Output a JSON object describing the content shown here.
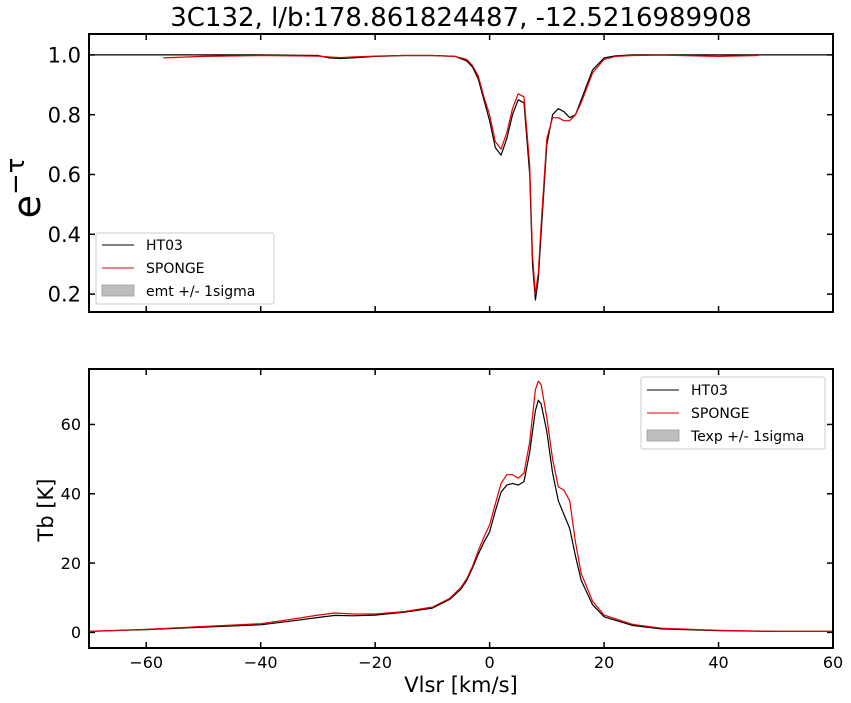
{
  "title": "3C132, l/b:178.861824487, -12.5216989908",
  "colors": {
    "ht03": "#000000",
    "sponge": "#e00000",
    "band": "#bdbdbd"
  },
  "chart_data": [
    {
      "type": "line",
      "ylabel_base": "e",
      "ylabel_exp": "−τ",
      "xlim": [
        -70,
        60
      ],
      "ylim": [
        0.14,
        1.07
      ],
      "yticks": [
        0.2,
        0.4,
        0.6,
        0.8,
        1.0
      ],
      "ytick_labels": [
        "0.2",
        "0.4",
        "0.6",
        "0.8",
        "1.0"
      ],
      "legend_position": "lower-left",
      "legend": [
        "HT03",
        "SPONGE",
        "emt +/- 1sigma"
      ],
      "series": [
        {
          "name": "HT03",
          "x": [
            -70,
            -60,
            -50,
            -40,
            -30,
            -28,
            -26,
            -24,
            -20,
            -15,
            -10,
            -6,
            -4,
            -3,
            -2,
            -1,
            0,
            1,
            2,
            3,
            4,
            5,
            6,
            7,
            7.5,
            8,
            8.5,
            9,
            10,
            11,
            12,
            13,
            14,
            15,
            16,
            17,
            18,
            20,
            22,
            25,
            30,
            40,
            50,
            60
          ],
          "y": [
            1.0,
            1.0,
            1.0,
            1.0,
            0.998,
            0.99,
            0.988,
            0.99,
            0.995,
            0.998,
            0.998,
            0.995,
            0.98,
            0.96,
            0.92,
            0.85,
            0.78,
            0.69,
            0.665,
            0.72,
            0.8,
            0.85,
            0.84,
            0.6,
            0.3,
            0.18,
            0.25,
            0.4,
            0.7,
            0.8,
            0.82,
            0.81,
            0.79,
            0.8,
            0.85,
            0.9,
            0.95,
            0.99,
            0.997,
            1.0,
            1.0,
            1.0,
            1.0,
            1.0
          ]
        },
        {
          "name": "SPONGE",
          "x": [
            -57,
            -50,
            -40,
            -30,
            -28,
            -26,
            -24,
            -20,
            -15,
            -10,
            -6,
            -4,
            -3,
            -2,
            -1,
            0,
            1,
            2,
            3,
            4,
            5,
            6,
            7,
            7.5,
            8,
            8.5,
            9,
            10,
            11,
            12,
            13,
            14,
            15,
            16,
            17,
            18,
            20,
            22,
            25,
            30,
            40,
            47
          ],
          "y": [
            0.99,
            0.995,
            0.998,
            0.996,
            0.993,
            0.991,
            0.993,
            0.996,
            0.998,
            0.998,
            0.995,
            0.985,
            0.965,
            0.93,
            0.86,
            0.8,
            0.71,
            0.685,
            0.74,
            0.82,
            0.87,
            0.86,
            0.63,
            0.33,
            0.2,
            0.27,
            0.43,
            0.72,
            0.79,
            0.79,
            0.78,
            0.78,
            0.8,
            0.84,
            0.89,
            0.94,
            0.985,
            0.995,
            0.998,
            0.999,
            0.995,
            0.998
          ]
        }
      ]
    },
    {
      "type": "line",
      "xlabel": "Vlsr [km/s]",
      "ylabel": "Tb [K]",
      "xlim": [
        -70,
        60
      ],
      "ylim": [
        -4.5,
        76
      ],
      "yticks": [
        0,
        20,
        40,
        60
      ],
      "ytick_labels": [
        "0",
        "20",
        "40",
        "60"
      ],
      "xticks": [
        -60,
        -40,
        -20,
        0,
        20,
        40,
        60
      ],
      "xtick_labels": [
        "−60",
        "−40",
        "−20",
        "0",
        "20",
        "40",
        "60"
      ],
      "legend_position": "upper-right",
      "legend": [
        "HT03",
        "SPONGE",
        "Texp +/- 1sigma"
      ],
      "series": [
        {
          "name": "HT03",
          "x": [
            -70,
            -60,
            -50,
            -40,
            -35,
            -30,
            -27,
            -24,
            -20,
            -15,
            -10,
            -7,
            -5,
            -4,
            -3,
            -2,
            -1,
            0,
            1,
            2,
            3,
            4,
            5,
            6,
            7,
            8,
            8.5,
            9,
            10,
            11,
            12,
            13,
            14,
            15,
            16,
            18,
            20,
            25,
            30,
            40,
            50,
            60
          ],
          "y": [
            0.3,
            0.8,
            1.5,
            2.2,
            3.2,
            4.3,
            4.9,
            4.8,
            5.0,
            5.8,
            7.0,
            9.5,
            12.5,
            15.0,
            18.5,
            22.5,
            26.0,
            29.0,
            35.0,
            40.5,
            42.5,
            43.0,
            42.5,
            43.5,
            52.0,
            64.0,
            67.0,
            66.0,
            58.0,
            46.0,
            38.0,
            34.0,
            30.0,
            22.0,
            15.0,
            8.0,
            4.5,
            2.0,
            1.0,
            0.5,
            0.3,
            0.3
          ]
        },
        {
          "name": "SPONGE",
          "x": [
            -70,
            -60,
            -50,
            -40,
            -35,
            -30,
            -27,
            -24,
            -20,
            -15,
            -10,
            -7,
            -5,
            -4,
            -3,
            -2,
            -1,
            0,
            1,
            2,
            3,
            4,
            5,
            6,
            7,
            8,
            8.5,
            9,
            10,
            11,
            12,
            13,
            14,
            15,
            16,
            18,
            20,
            25,
            30,
            40,
            50,
            60
          ],
          "y": [
            0.3,
            0.9,
            1.7,
            2.5,
            3.7,
            5.0,
            5.6,
            5.3,
            5.3,
            6.0,
            7.3,
            9.8,
            13.0,
            15.5,
            19.0,
            23.5,
            27.5,
            31.0,
            37.0,
            43.0,
            45.5,
            45.5,
            44.5,
            46.0,
            55.0,
            70.0,
            72.5,
            71.5,
            62.0,
            50.0,
            42.0,
            41.0,
            38.0,
            26.0,
            17.0,
            9.0,
            5.0,
            2.3,
            1.2,
            0.6,
            0.3,
            0.3
          ]
        }
      ]
    }
  ]
}
